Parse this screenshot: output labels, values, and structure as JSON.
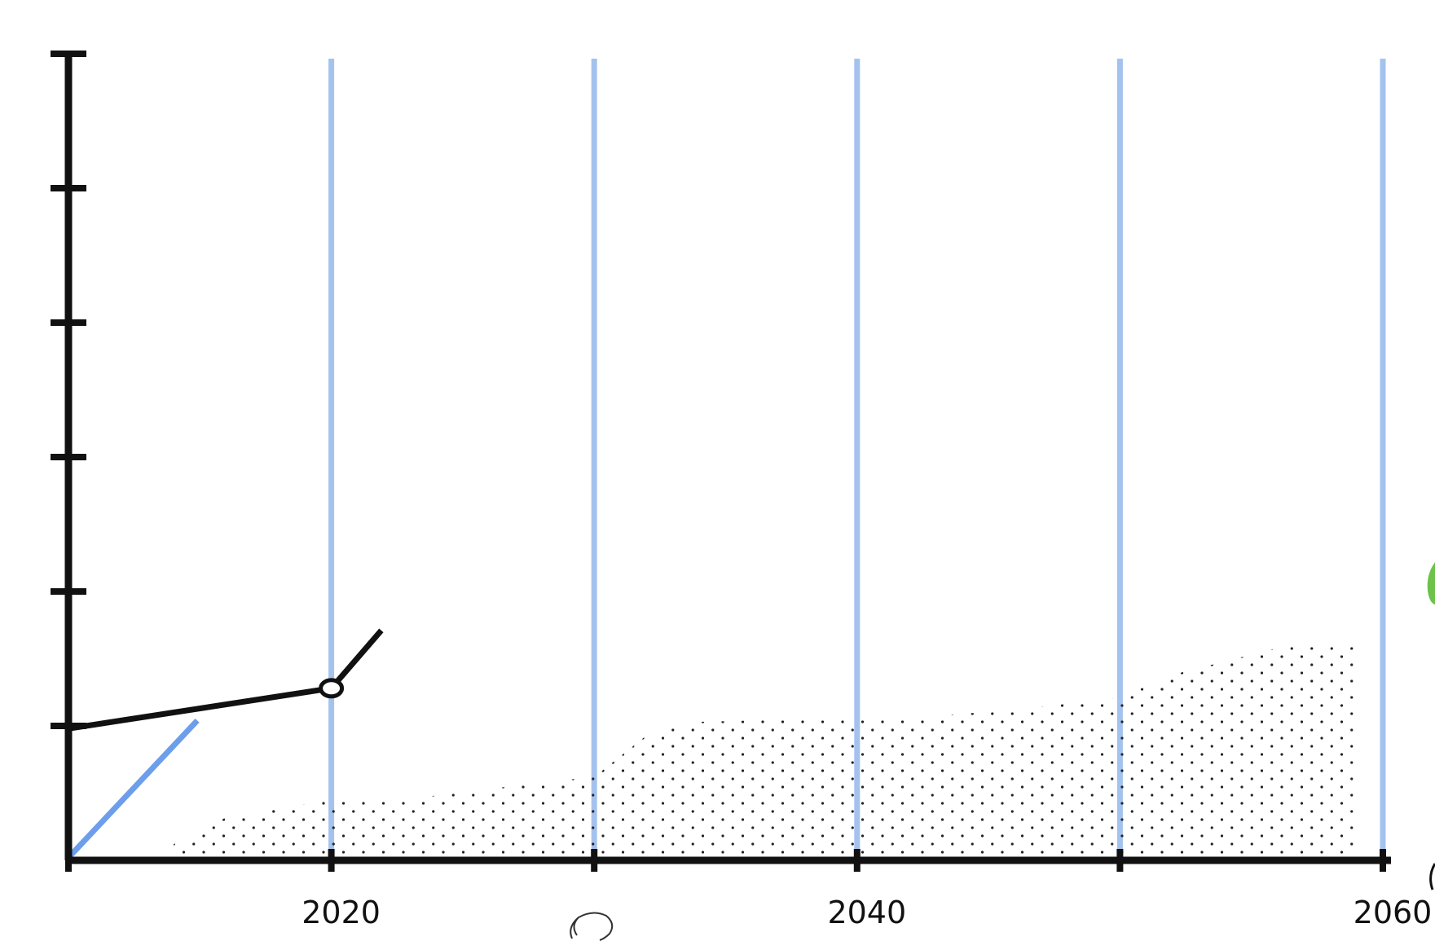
{
  "chart_data": {
    "type": "line",
    "x_ticks": [
      {
        "value": 2010,
        "label": ""
      },
      {
        "value": 2020,
        "label": "2020"
      },
      {
        "value": 2030,
        "label": ""
      },
      {
        "value": 2040,
        "label": "2040"
      },
      {
        "value": 2050,
        "label": ""
      },
      {
        "value": 2060,
        "label": "2060"
      }
    ],
    "xlim": [
      2010,
      2060
    ],
    "ylim": [
      0,
      6
    ],
    "y_ticks": [
      0,
      1,
      2,
      3,
      4,
      5,
      6
    ],
    "grid": "vertical",
    "series": [
      {
        "color": "#111111",
        "style": "line",
        "points": [
          [
            2010,
            0.98
          ],
          [
            2020,
            1.28
          ],
          [
            2021.9,
            1.71
          ]
        ]
      },
      {
        "color": "#6d9eeb",
        "style": "line",
        "points": [
          [
            2010,
            0.02
          ],
          [
            2014.9,
            1.04
          ]
        ]
      },
      {
        "color": "#222222",
        "style": "dotted-area",
        "points": [
          [
            2014,
            0.12
          ],
          [
            2016,
            0.32
          ],
          [
            2020,
            0.45
          ],
          [
            2024,
            0.48
          ],
          [
            2028,
            0.58
          ],
          [
            2030,
            0.62
          ],
          [
            2032,
            0.93
          ],
          [
            2034,
            1.03
          ],
          [
            2038,
            1.05
          ],
          [
            2042,
            1.06
          ],
          [
            2046,
            1.12
          ],
          [
            2050,
            1.21
          ],
          [
            2052,
            1.38
          ],
          [
            2056,
            1.58
          ],
          [
            2059,
            1.62
          ]
        ]
      }
    ]
  }
}
